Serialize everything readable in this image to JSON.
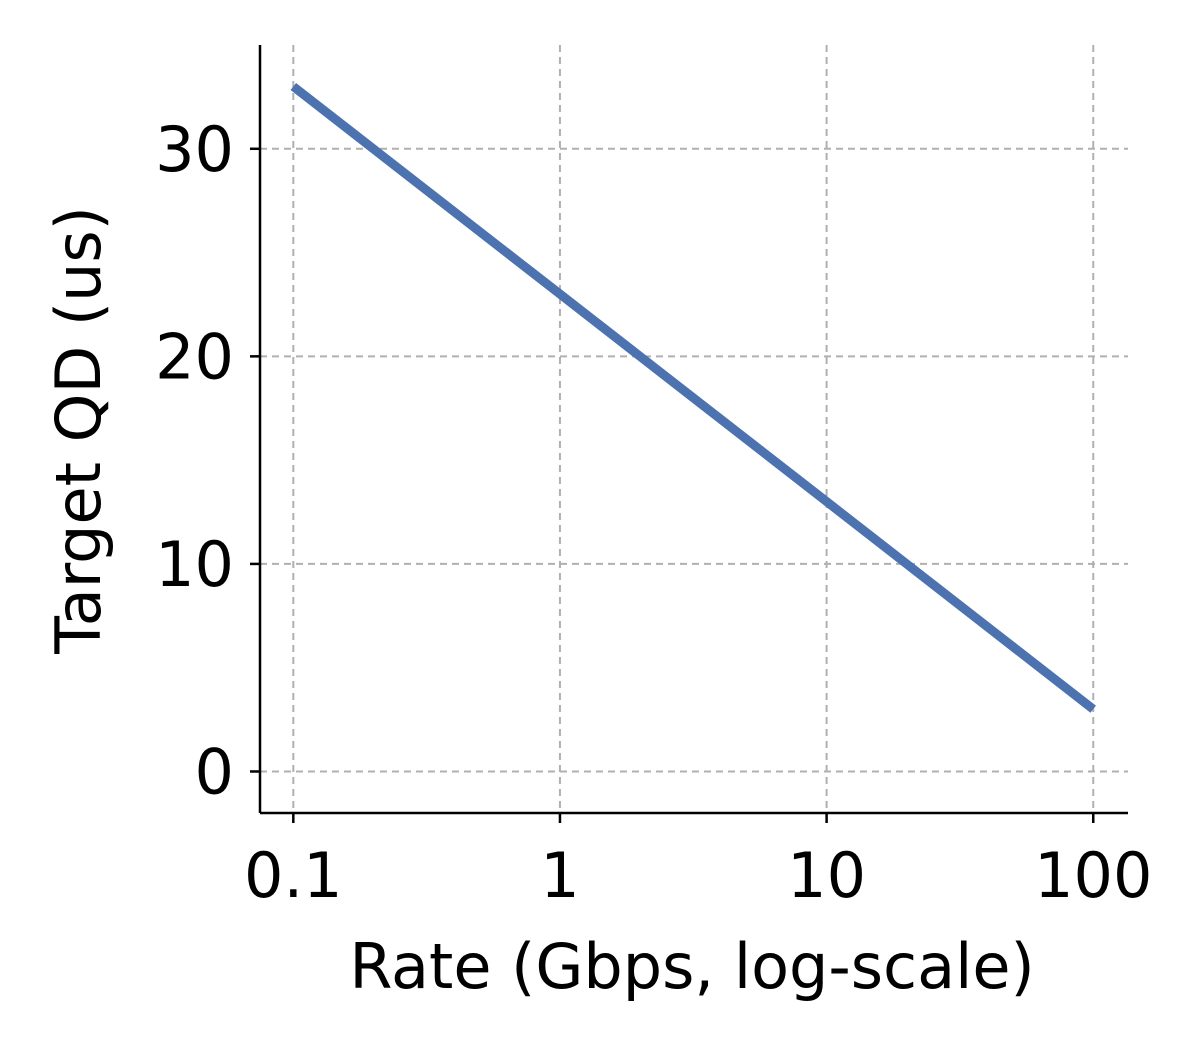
{
  "chart_data": {
    "type": "line",
    "xlabel": "Rate (Gbps, log-scale)",
    "ylabel": "Target QD (us)",
    "x_scale": "log",
    "xlim": [
      0.075,
      135
    ],
    "ylim": [
      -2,
      35
    ],
    "x_ticks": [
      {
        "value": 0.1,
        "label": "0.1"
      },
      {
        "value": 1,
        "label": "1"
      },
      {
        "value": 10,
        "label": "10"
      },
      {
        "value": 100,
        "label": "100"
      }
    ],
    "y_ticks": [
      {
        "value": 0,
        "label": "0"
      },
      {
        "value": 10,
        "label": "10"
      },
      {
        "value": 20,
        "label": "20"
      },
      {
        "value": 30,
        "label": "30"
      }
    ],
    "grid": true,
    "series": [
      {
        "color": "#4c72b0",
        "x": [
          0.1,
          1,
          10,
          100
        ],
        "y": [
          33,
          23,
          13,
          3
        ]
      }
    ]
  }
}
